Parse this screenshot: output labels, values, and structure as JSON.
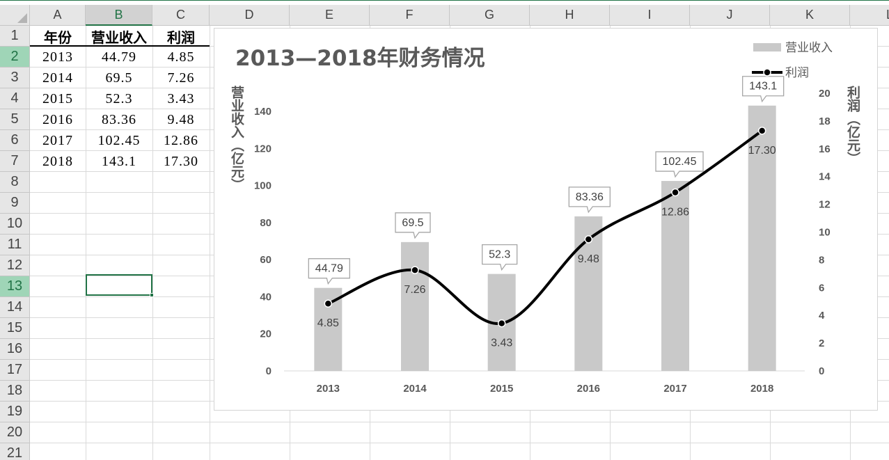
{
  "spreadsheet": {
    "columns": [
      "A",
      "B",
      "C",
      "D",
      "E",
      "F",
      "G",
      "H",
      "I",
      "J",
      "K",
      "L"
    ],
    "selected_column": "B",
    "rows": [
      "1",
      "2",
      "3",
      "4",
      "5",
      "6",
      "7",
      "8",
      "9",
      "10",
      "11",
      "12",
      "13",
      "14",
      "15",
      "16",
      "17",
      "18",
      "19",
      "20",
      "21"
    ],
    "selected_row": "13",
    "headers": [
      "年份",
      "营业收入",
      "利润"
    ],
    "data_rows": [
      [
        "2013",
        "44.79",
        "4.85"
      ],
      [
        "2014",
        "69.5",
        "7.26"
      ],
      [
        "2015",
        "52.3",
        "3.43"
      ],
      [
        "2016",
        "83.36",
        "9.48"
      ],
      [
        "2017",
        "102.45",
        "12.86"
      ],
      [
        "2018",
        "143.1",
        "17.30"
      ]
    ]
  },
  "colors": {
    "accent": "#217346",
    "bar": "#c9c9c9",
    "line": "#000000",
    "title": "#595959"
  },
  "chart_data": {
    "type": "bar",
    "title": "2013—2018年财务情况",
    "categories": [
      "2013",
      "2014",
      "2015",
      "2016",
      "2017",
      "2018"
    ],
    "series": [
      {
        "name": "营业收入",
        "type": "bar",
        "axis": "left",
        "values": [
          44.79,
          69.5,
          52.3,
          83.36,
          102.45,
          143.1
        ],
        "labels": [
          "44.79",
          "69.5",
          "52.3",
          "83.36",
          "102.45",
          "143.1"
        ]
      },
      {
        "name": "利润",
        "type": "line",
        "smooth": true,
        "axis": "right",
        "values": [
          4.85,
          7.26,
          3.43,
          9.48,
          12.86,
          17.3
        ],
        "labels": [
          "4.85",
          "7.26",
          "3.43",
          "9.48",
          "12.86",
          "17.30"
        ]
      }
    ],
    "ylabel": "营业收入（亿元）",
    "y2label": "利润（亿元）",
    "ylim": [
      0,
      140
    ],
    "y_ticks": [
      "0",
      "20",
      "40",
      "60",
      "80",
      "100",
      "120",
      "140"
    ],
    "y2lim": [
      0,
      20
    ],
    "y2_ticks": [
      "0",
      "2",
      "4",
      "6",
      "8",
      "10",
      "12",
      "14",
      "16",
      "18",
      "20"
    ],
    "legend_position": "top-right",
    "grid": false
  }
}
